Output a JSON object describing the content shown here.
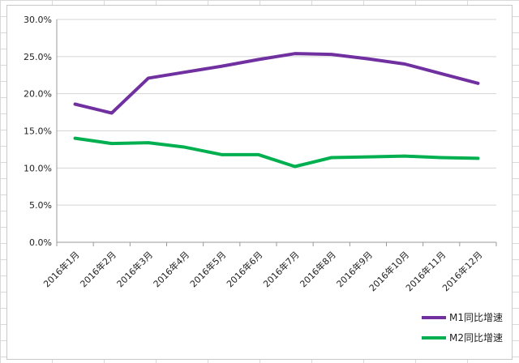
{
  "chart_data": {
    "type": "line",
    "categories": [
      "2016年1月",
      "2016年2月",
      "2016年3月",
      "2016年4月",
      "2016年5月",
      "2016年6月",
      "2016年7月",
      "2016年8月",
      "2016年9月",
      "2016年10月",
      "2016年11月",
      "2016年12月"
    ],
    "series": [
      {
        "name": "M1同比增速",
        "color": "#7030a0",
        "values": [
          18.6,
          17.4,
          22.1,
          22.9,
          23.7,
          24.6,
          25.4,
          25.3,
          24.7,
          24.0,
          22.7,
          21.4
        ]
      },
      {
        "name": "M2同比增速",
        "color": "#00b050",
        "values": [
          14.0,
          13.3,
          13.4,
          12.8,
          11.8,
          11.8,
          10.2,
          11.4,
          11.5,
          11.6,
          11.4,
          11.3
        ]
      }
    ],
    "yticks": [
      "0.0%",
      "5.0%",
      "10.0%",
      "15.0%",
      "20.0%",
      "25.0%",
      "30.0%"
    ],
    "ylim": [
      0,
      30
    ],
    "grid": true,
    "legend_position": "bottom-right"
  }
}
